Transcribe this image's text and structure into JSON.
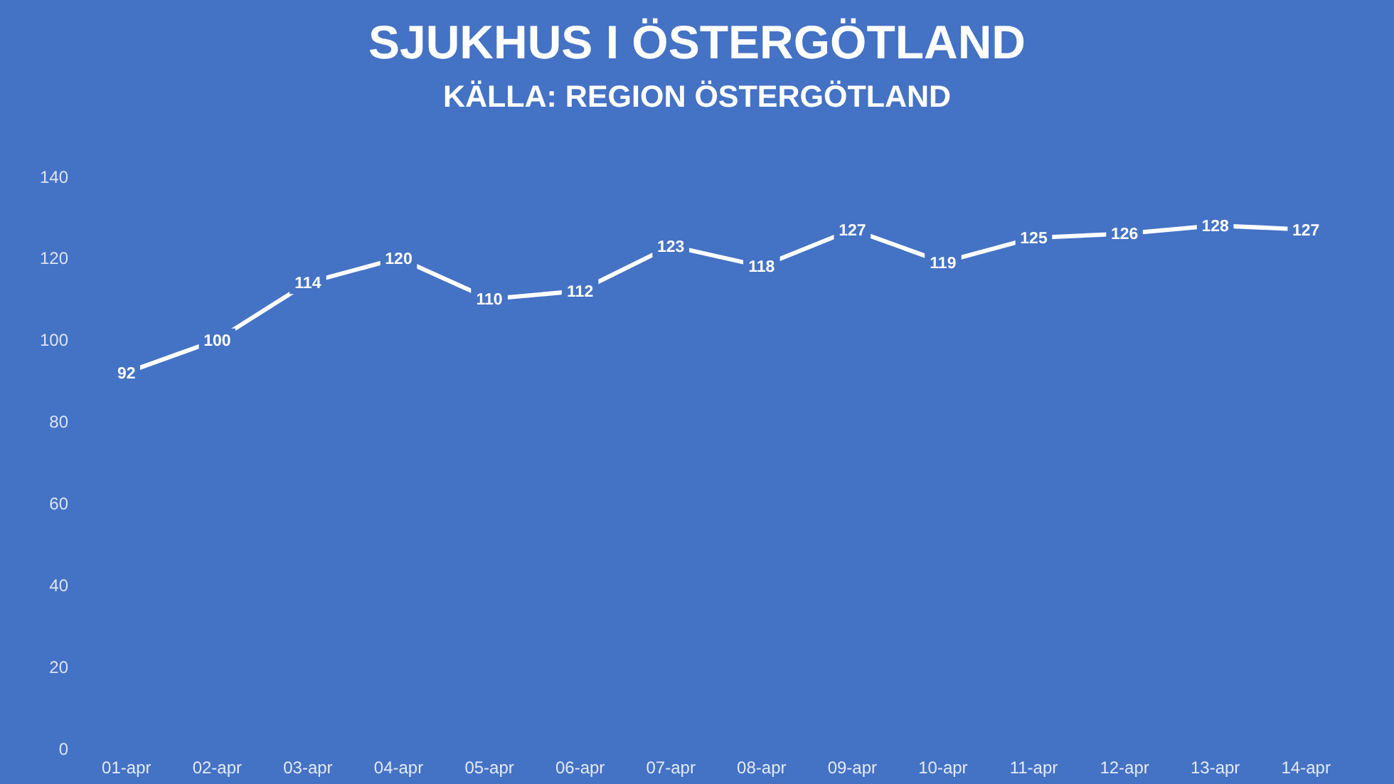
{
  "chart_data": {
    "type": "line",
    "title": "SJUKHUS I ÖSTERGÖTLAND",
    "subtitle": "KÄLLA: REGION ÖSTERGÖTLAND",
    "categories": [
      "01-apr",
      "02-apr",
      "03-apr",
      "04-apr",
      "05-apr",
      "06-apr",
      "07-apr",
      "08-apr",
      "09-apr",
      "10-apr",
      "11-apr",
      "12-apr",
      "13-apr",
      "14-apr"
    ],
    "series": [
      {
        "color": "#ffffff",
        "values": [
          92,
          100,
          114,
          120,
          110,
          112,
          123,
          118,
          127,
          119,
          125,
          126,
          128,
          127
        ]
      }
    ],
    "ylim": [
      0,
      140
    ],
    "yticks": [
      0,
      20,
      40,
      60,
      80,
      100,
      120,
      140
    ],
    "data_labels": true,
    "marker": "none"
  }
}
